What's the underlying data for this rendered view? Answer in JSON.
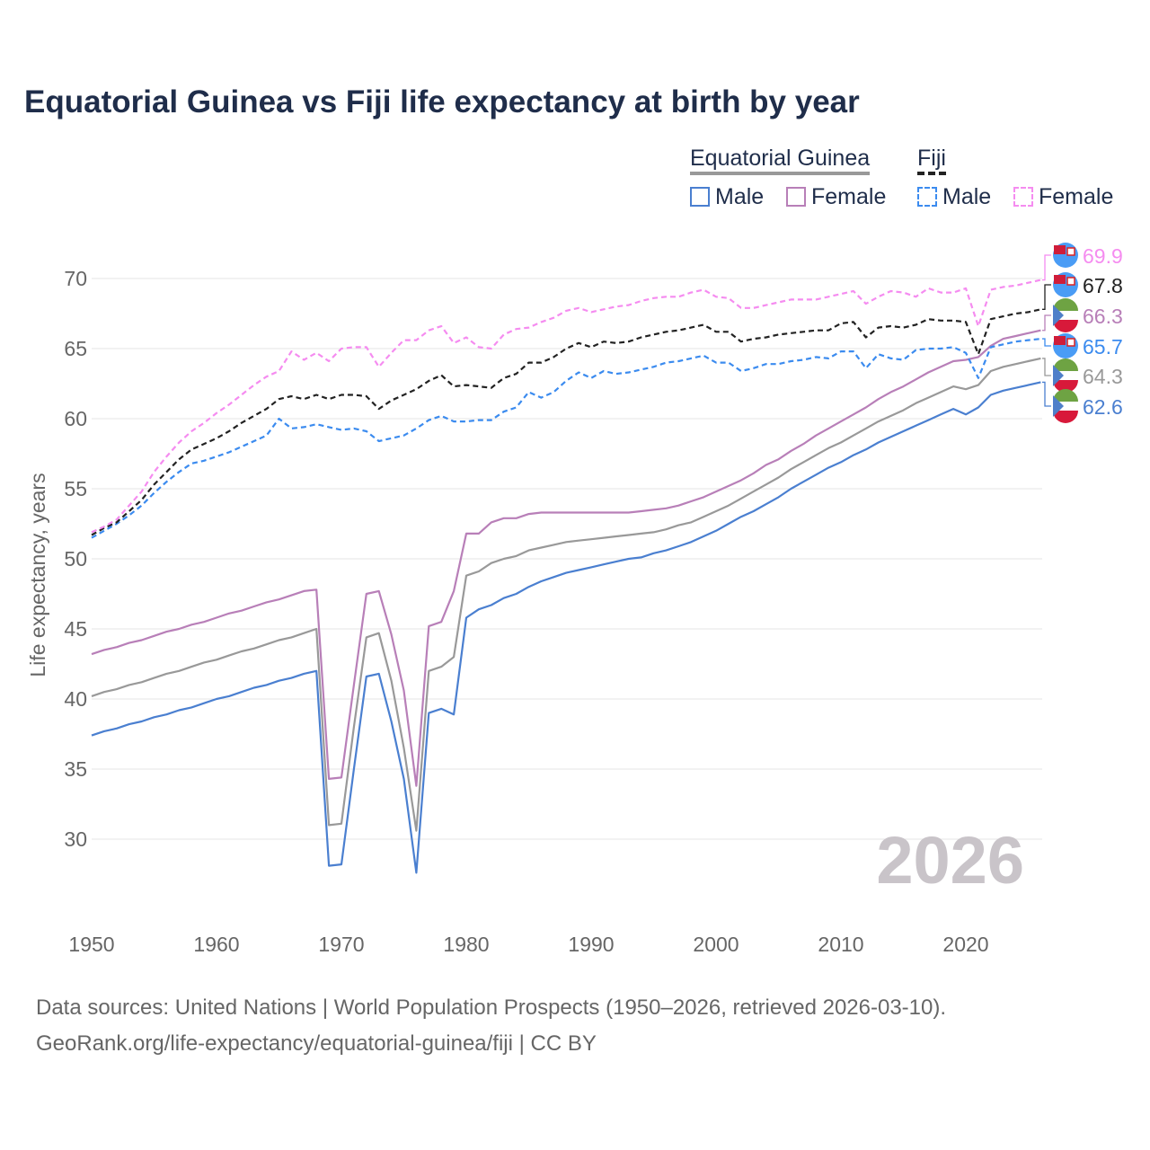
{
  "chart_data": {
    "type": "line",
    "title": "Equatorial Guinea vs Fiji life expectancy at birth by year",
    "ylabel": "Life expectancy, years",
    "xlabel": "",
    "xlim": [
      1950,
      2026
    ],
    "ylim": [
      26,
      71.5
    ],
    "xticks": [
      "1950",
      "1960",
      "1970",
      "1980",
      "1990",
      "2000",
      "2010",
      "2020"
    ],
    "yticks": [
      "30",
      "35",
      "40",
      "45",
      "50",
      "55",
      "60",
      "65",
      "70"
    ],
    "grid": true,
    "year_watermark": "2026",
    "legend": {
      "groups": [
        {
          "name": "Equatorial Guinea",
          "items": [
            "Male",
            "Female"
          ]
        },
        {
          "name": "Fiji",
          "items": [
            "Male",
            "Female"
          ]
        }
      ],
      "placement": "top-right"
    },
    "x_start": 1950,
    "series": [
      {
        "name": "Fiji Female",
        "country": "Fiji",
        "sex": "Female",
        "color": "#f58cf0",
        "dashed": true,
        "end_label": "69.9",
        "values": [
          51.9,
          52.3,
          52.8,
          53.8,
          54.8,
          56.2,
          57.3,
          58.3,
          59.1,
          59.7,
          60.4,
          61.0,
          61.7,
          62.4,
          63.0,
          63.4,
          64.8,
          64.2,
          64.7,
          64.1,
          65.0,
          65.1,
          65.1,
          63.7,
          64.7,
          65.6,
          65.6,
          66.3,
          66.6,
          65.4,
          65.8,
          65.1,
          65.0,
          66.0,
          66.4,
          66.5,
          66.9,
          67.2,
          67.7,
          67.9,
          67.6,
          67.8,
          68.0,
          68.1,
          68.4,
          68.6,
          68.7,
          68.7,
          69.0,
          69.2,
          68.7,
          68.6,
          67.9,
          67.9,
          68.1,
          68.3,
          68.5,
          68.5,
          68.5,
          68.7,
          68.9,
          69.1,
          68.2,
          68.7,
          69.1,
          69.0,
          68.7,
          69.3,
          69.0,
          69.0,
          69.3,
          66.6,
          69.2,
          69.4,
          69.5,
          69.7,
          69.9
        ]
      },
      {
        "name": "Fiji Total",
        "country": "Fiji",
        "sex": "Total",
        "color": "#222222",
        "dashed": true,
        "end_label": "67.8",
        "values": [
          51.7,
          52.2,
          52.6,
          53.4,
          54.2,
          55.3,
          56.2,
          57.1,
          57.8,
          58.2,
          58.6,
          59.1,
          59.7,
          60.2,
          60.7,
          61.4,
          61.6,
          61.4,
          61.7,
          61.4,
          61.7,
          61.7,
          61.6,
          60.7,
          61.3,
          61.7,
          62.1,
          62.7,
          63.1,
          62.3,
          62.4,
          62.3,
          62.2,
          62.9,
          63.2,
          64.0,
          64.0,
          64.4,
          65.0,
          65.4,
          65.1,
          65.5,
          65.4,
          65.5,
          65.8,
          66.0,
          66.2,
          66.3,
          66.5,
          66.7,
          66.2,
          66.2,
          65.5,
          65.7,
          65.8,
          66.0,
          66.1,
          66.2,
          66.3,
          66.3,
          66.8,
          66.9,
          65.8,
          66.5,
          66.6,
          66.5,
          66.7,
          67.1,
          67.0,
          67.0,
          66.9,
          64.6,
          67.1,
          67.3,
          67.5,
          67.6,
          67.8
        ]
      },
      {
        "name": "Equatorial Guinea Female",
        "country": "Equatorial Guinea",
        "sex": "Female",
        "color": "#b87fb8",
        "dashed": false,
        "end_label": "66.3",
        "values": [
          43.2,
          43.5,
          43.7,
          44.0,
          44.2,
          44.5,
          44.8,
          45.0,
          45.3,
          45.5,
          45.8,
          46.1,
          46.3,
          46.6,
          46.9,
          47.1,
          47.4,
          47.7,
          47.8,
          34.3,
          34.4,
          41.0,
          47.5,
          47.7,
          44.6,
          40.6,
          33.8,
          45.2,
          45.5,
          47.7,
          51.8,
          51.8,
          52.6,
          52.9,
          52.9,
          53.2,
          53.3,
          53.3,
          53.3,
          53.3,
          53.3,
          53.3,
          53.3,
          53.3,
          53.4,
          53.5,
          53.6,
          53.8,
          54.1,
          54.4,
          54.8,
          55.2,
          55.6,
          56.1,
          56.7,
          57.1,
          57.7,
          58.2,
          58.8,
          59.3,
          59.8,
          60.3,
          60.8,
          61.4,
          61.9,
          62.3,
          62.8,
          63.3,
          63.7,
          64.1,
          64.2,
          64.4,
          65.2,
          65.7,
          65.9,
          66.1,
          66.3
        ]
      },
      {
        "name": "Fiji Male",
        "country": "Fiji",
        "sex": "Male",
        "color": "#3b8bef",
        "dashed": true,
        "end_label": "65.7",
        "values": [
          51.5,
          52.0,
          52.5,
          53.1,
          53.8,
          54.7,
          55.5,
          56.2,
          56.8,
          57.0,
          57.3,
          57.6,
          58.0,
          58.4,
          58.8,
          60.0,
          59.3,
          59.4,
          59.6,
          59.4,
          59.2,
          59.3,
          59.1,
          58.4,
          58.6,
          58.8,
          59.3,
          59.9,
          60.2,
          59.8,
          59.8,
          59.9,
          59.9,
          60.5,
          60.8,
          61.9,
          61.5,
          61.9,
          62.7,
          63.3,
          62.9,
          63.4,
          63.2,
          63.3,
          63.5,
          63.7,
          64.0,
          64.1,
          64.3,
          64.5,
          64.0,
          64.0,
          63.4,
          63.6,
          63.9,
          63.9,
          64.1,
          64.2,
          64.4,
          64.3,
          64.8,
          64.8,
          63.6,
          64.6,
          64.3,
          64.2,
          64.9,
          65.0,
          65.0,
          65.1,
          64.7,
          62.9,
          65.1,
          65.3,
          65.5,
          65.6,
          65.7
        ]
      },
      {
        "name": "Equatorial Guinea Total",
        "country": "Equatorial Guinea",
        "sex": "Total",
        "color": "#999999",
        "dashed": false,
        "end_label": "64.3",
        "values": [
          40.2,
          40.5,
          40.7,
          41.0,
          41.2,
          41.5,
          41.8,
          42.0,
          42.3,
          42.6,
          42.8,
          43.1,
          43.4,
          43.6,
          43.9,
          44.2,
          44.4,
          44.7,
          45.0,
          31.0,
          31.1,
          38.0,
          44.4,
          44.7,
          41.3,
          36.5,
          30.6,
          42.0,
          42.3,
          43.0,
          48.8,
          49.1,
          49.7,
          50.0,
          50.2,
          50.6,
          50.8,
          51.0,
          51.2,
          51.3,
          51.4,
          51.5,
          51.6,
          51.7,
          51.8,
          51.9,
          52.1,
          52.4,
          52.6,
          53.0,
          53.4,
          53.8,
          54.3,
          54.8,
          55.3,
          55.8,
          56.4,
          56.9,
          57.4,
          57.9,
          58.3,
          58.8,
          59.3,
          59.8,
          60.2,
          60.6,
          61.1,
          61.5,
          61.9,
          62.3,
          62.1,
          62.4,
          63.4,
          63.7,
          63.9,
          64.1,
          64.3
        ]
      },
      {
        "name": "Equatorial Guinea Male",
        "country": "Equatorial Guinea",
        "sex": "Male",
        "color": "#4a7fd0",
        "dashed": false,
        "end_label": "62.6",
        "values": [
          37.4,
          37.7,
          37.9,
          38.2,
          38.4,
          38.7,
          38.9,
          39.2,
          39.4,
          39.7,
          40.0,
          40.2,
          40.5,
          40.8,
          41.0,
          41.3,
          41.5,
          41.8,
          42.0,
          28.1,
          28.2,
          35.0,
          41.6,
          41.8,
          38.4,
          34.3,
          27.6,
          39.0,
          39.3,
          38.9,
          45.8,
          46.4,
          46.7,
          47.2,
          47.5,
          48.0,
          48.4,
          48.7,
          49.0,
          49.2,
          49.4,
          49.6,
          49.8,
          50.0,
          50.1,
          50.4,
          50.6,
          50.9,
          51.2,
          51.6,
          52.0,
          52.5,
          53.0,
          53.4,
          53.9,
          54.4,
          55.0,
          55.5,
          56.0,
          56.5,
          56.9,
          57.4,
          57.8,
          58.3,
          58.7,
          59.1,
          59.5,
          59.9,
          60.3,
          60.7,
          60.3,
          60.8,
          61.7,
          62.0,
          62.2,
          62.4,
          62.6
        ]
      }
    ]
  },
  "sources": {
    "line1": "Data sources: United Nations | World Population Prospects (1950–2026, retrieved 2026-03-10).",
    "line2": "GeoRank.org/life-expectancy/equatorial-guinea/fiji | CC BY"
  }
}
